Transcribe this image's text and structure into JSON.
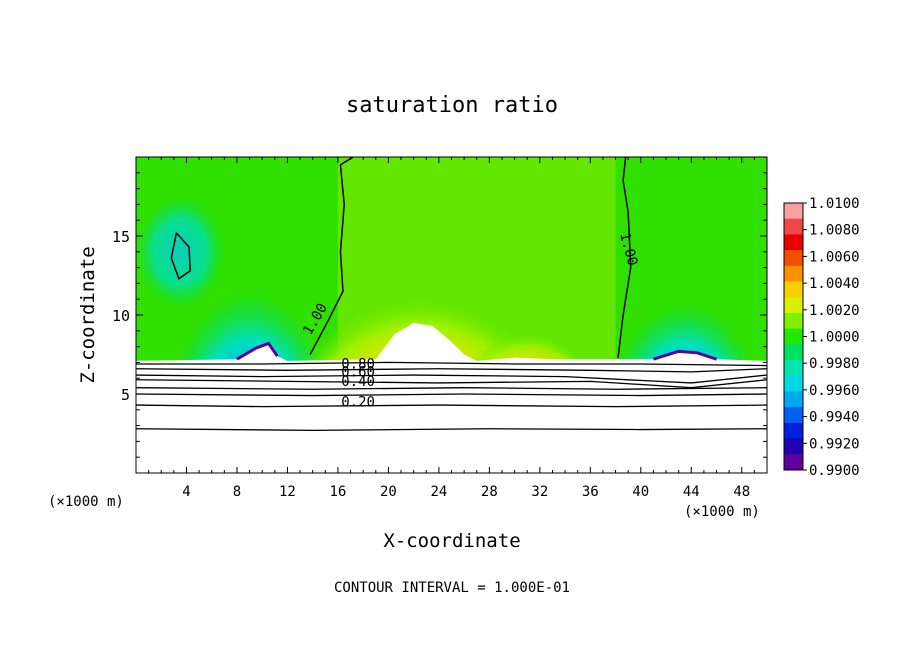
{
  "chart_data": {
    "type": "heatmap",
    "title": "saturation ratio",
    "xlabel": "X-coordinate",
    "ylabel": "Z-coordinate",
    "x_unit_left": "(×1000 m)",
    "x_unit_right": "(×1000 m)",
    "xlim": [
      0,
      50
    ],
    "ylim": [
      0,
      20
    ],
    "x_ticks": [
      4,
      8,
      12,
      16,
      20,
      24,
      28,
      32,
      36,
      40,
      44,
      48
    ],
    "y_ticks": [
      5,
      10,
      15
    ],
    "colorbar": {
      "min": 0.99,
      "max": 1.01,
      "tick_labels": [
        "1.0100",
        "1.0080",
        "1.0060",
        "1.0040",
        "1.0020",
        "1.0000",
        "0.9980",
        "0.9960",
        "0.9940",
        "0.9920",
        "0.9900"
      ],
      "colors": [
        "#f8a0a0",
        "#f04848",
        "#e80000",
        "#f05000",
        "#f89000",
        "#f8d000",
        "#d8f000",
        "#80f000",
        "#20e800",
        "#00e060",
        "#00e8b0",
        "#00d8e8",
        "#00a8f0",
        "#0060f0",
        "#0020e0",
        "#2000b0",
        "#6000a0"
      ]
    },
    "contour_labels": [
      {
        "text": "1.00",
        "x": 14.5,
        "y": 9.6
      },
      {
        "text": "1.00",
        "x": 38.7,
        "y": 14.1
      },
      {
        "text": "0.80",
        "x": 17.6,
        "y": 6.6
      },
      {
        "text": "0.60",
        "x": 17.6,
        "y": 6.1
      },
      {
        "text": "0.40",
        "x": 17.6,
        "y": 5.5
      },
      {
        "text": "0.20",
        "x": 17.6,
        "y": 4.2
      }
    ],
    "contour_interval": "CONTOUR INTERVAL = 1.000E-01"
  }
}
